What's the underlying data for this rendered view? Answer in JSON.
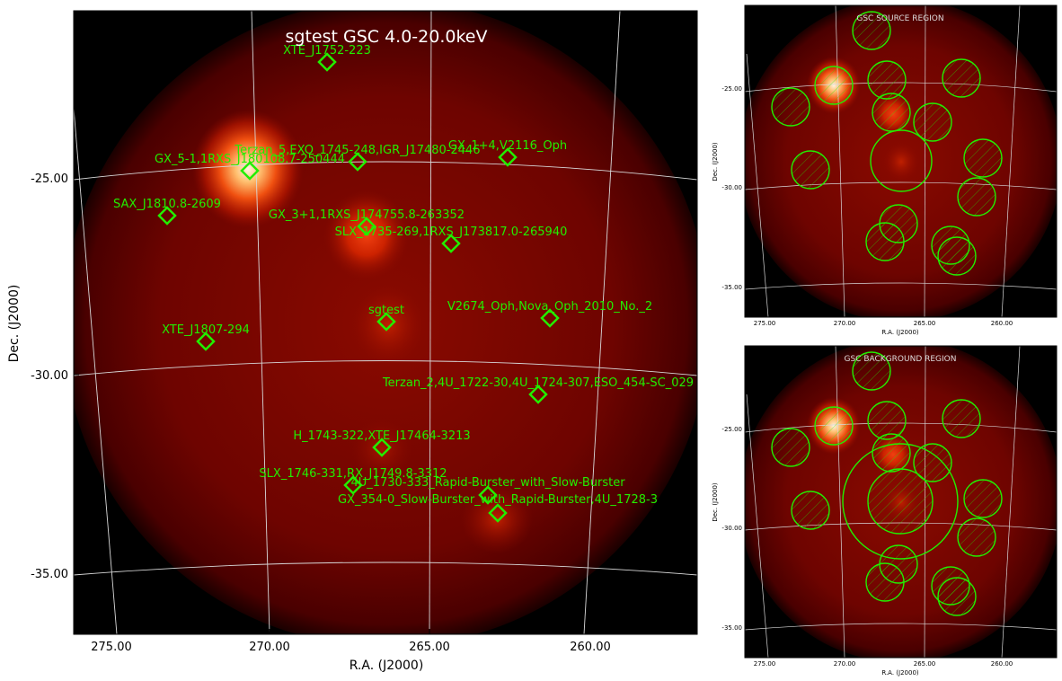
{
  "main": {
    "title": "sgtest GSC 4.0-20.0keV",
    "xlabel": "R.A. (J2000)",
    "ylabel": "Dec. (J2000)",
    "xticks": [
      "275.00",
      "270.00",
      "265.00",
      "260.00"
    ],
    "yticks": [
      "-25.00",
      "-30.00",
      "-35.00"
    ],
    "sources": [
      {
        "label": "XTE_J1752-223"
      },
      {
        "label": "Terzan_5,EXO_1745-248,IGR_J17480-2446"
      },
      {
        "label": "GX_1+4,V2116_Oph"
      },
      {
        "label": "GX_5-1,1RXS_J180108.7-250444"
      },
      {
        "label": "SAX_J1810.8-2609"
      },
      {
        "label": "GX_3+1,1RXS_J174755.8-263352"
      },
      {
        "label": "SLX_1735-269,1RXS_J173817.0-265940"
      },
      {
        "label": "sgtest"
      },
      {
        "label": "V2674_Oph,Nova_Oph_2010_No._2"
      },
      {
        "label": "XTE_J1807-294"
      },
      {
        "label": "Terzan_2,4U_1722-30,4U_1724-307,ESO_454-SC_029"
      },
      {
        "label": "H_1743-322,XTE_J17464-3213"
      },
      {
        "label": "SLX_1746-331,RX_J1749.8-3312"
      },
      {
        "label": "4U_1730-333_Rapid-Burster_with_Slow-Burster"
      },
      {
        "label": "GX_354-0_Slow-Burster_with_Rapid-Burster,4U_1728-3"
      }
    ]
  },
  "source_panel": {
    "title": "GSC SOURCE REGION",
    "xlabel": "R.A. (J2000)",
    "ylabel": "Dec. (J2000)",
    "xticks": [
      "275.00",
      "270.00",
      "265.00",
      "260.00"
    ],
    "yticks": [
      "-25.00",
      "-30.00",
      "-35.00"
    ]
  },
  "background_panel": {
    "title": "GSC BACKGROUND REGION",
    "xlabel": "R.A. (J2000)",
    "ylabel": "Dec. (J2000)",
    "xticks": [
      "275.00",
      "270.00",
      "265.00",
      "260.00"
    ],
    "yticks": [
      "-25.00",
      "-30.00",
      "-35.00"
    ]
  },
  "colors": {
    "marker": "#22ee00",
    "grid": "#d8d8d8",
    "glow": "#ffe6c8",
    "field": "#7a0500"
  }
}
